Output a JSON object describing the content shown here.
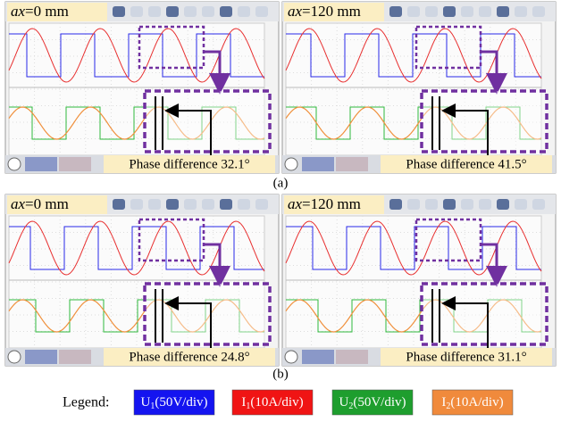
{
  "panels": [
    {
      "axis_symbol": "ax",
      "position": "=0 mm",
      "phase_text": "Phase difference 32.1°"
    },
    {
      "axis_symbol": "ax",
      "position": "=120 mm",
      "phase_text": "Phase difference 41.5°"
    },
    {
      "axis_symbol": "ax",
      "position": "=0 mm",
      "phase_text": "Phase difference 24.8°"
    },
    {
      "axis_symbol": "ax",
      "position": "=120 mm",
      "phase_text": "Phase difference 31.1°"
    }
  ],
  "captions": [
    "(a)",
    "(b)"
  ],
  "legend": {
    "title": "Legend:",
    "items": [
      {
        "symbol": "U",
        "subscript": "1",
        "scale": "(50V/div)",
        "color": "#1414f0"
      },
      {
        "symbol": "I",
        "subscript": "1",
        "scale": "(10A/div)",
        "color": "#f01414"
      },
      {
        "symbol": "U",
        "subscript": "2",
        "scale": "(50V/div)",
        "color": "#1e9e2e"
      },
      {
        "symbol": "I",
        "subscript": "2",
        "scale": "(10A/div)",
        "color": "#f08a3c"
      }
    ]
  }
}
